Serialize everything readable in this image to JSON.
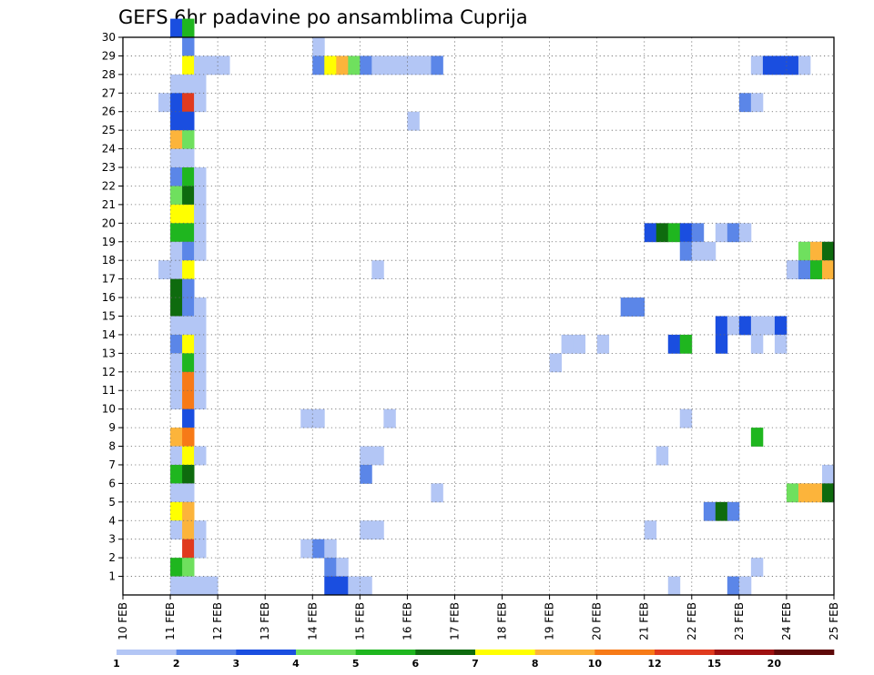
{
  "chart_data": {
    "type": "heatmap",
    "title": "GEFS 6hr padavine po ansamblima Cuprija",
    "xlabel": "",
    "ylabel": "",
    "x_ticks": [
      "10 FEB",
      "11 FEB",
      "12 FEB",
      "13 FEB",
      "14 FEB",
      "15 FEB",
      "16 FEB",
      "17 FEB",
      "18 FEB",
      "19 FEB",
      "20 FEB",
      "21 FEB",
      "22 FEB",
      "23 FEB",
      "24 FEB",
      "25 FEB"
    ],
    "y_ticks": [
      "1",
      "2",
      "3",
      "4",
      "5",
      "6",
      "7",
      "8",
      "9",
      "10",
      "11",
      "12",
      "13",
      "14",
      "15",
      "16",
      "17",
      "18",
      "19",
      "20",
      "21",
      "22",
      "23",
      "24",
      "25",
      "26",
      "27",
      "28",
      "29",
      "30"
    ],
    "x_range_days": [
      0,
      15
    ],
    "y_range_members": [
      0,
      30
    ],
    "grid": true,
    "steps_per_day": 4,
    "colorbar": {
      "labels": [
        "1",
        "2",
        "3",
        "4",
        "5",
        "6",
        "7",
        "8",
        "10",
        "12",
        "15",
        "20"
      ],
      "colors": [
        "#b3c6f5",
        "#5b86e8",
        "#1a4ee0",
        "#6fe05e",
        "#1fb61f",
        "#0e6b0e",
        "#ffff00",
        "#fcb43b",
        "#f77a17",
        "#e03a1e",
        "#9e1010",
        "#5e0808"
      ]
    },
    "cells": [
      {
        "member": 30,
        "step": 4,
        "bin": 2
      },
      {
        "member": 30,
        "step": 5,
        "bin": 4
      },
      {
        "member": 29,
        "step": 5,
        "bin": 1
      },
      {
        "member": 29,
        "step": 16,
        "bin": 0
      },
      {
        "member": 28,
        "step": 5,
        "bin": 6
      },
      {
        "member": 28,
        "step": 6,
        "bin": 0
      },
      {
        "member": 28,
        "step": 7,
        "bin": 0
      },
      {
        "member": 28,
        "step": 8,
        "bin": 0
      },
      {
        "member": 28,
        "step": 16,
        "bin": 1
      },
      {
        "member": 28,
        "step": 17,
        "bin": 6
      },
      {
        "member": 28,
        "step": 18,
        "bin": 7
      },
      {
        "member": 28,
        "step": 19,
        "bin": 3
      },
      {
        "member": 28,
        "step": 20,
        "bin": 1
      },
      {
        "member": 28,
        "step": 21,
        "bin": 0
      },
      {
        "member": 28,
        "step": 22,
        "bin": 0
      },
      {
        "member": 28,
        "step": 23,
        "bin": 0
      },
      {
        "member": 28,
        "step": 24,
        "bin": 0
      },
      {
        "member": 28,
        "step": 25,
        "bin": 0
      },
      {
        "member": 28,
        "step": 26,
        "bin": 1
      },
      {
        "member": 28,
        "step": 53,
        "bin": 0
      },
      {
        "member": 28,
        "step": 54,
        "bin": 2
      },
      {
        "member": 28,
        "step": 55,
        "bin": 2
      },
      {
        "member": 28,
        "step": 56,
        "bin": 2
      },
      {
        "member": 28,
        "step": 57,
        "bin": 0
      },
      {
        "member": 27,
        "step": 4,
        "bin": 0
      },
      {
        "member": 27,
        "step": 5,
        "bin": 0
      },
      {
        "member": 27,
        "step": 6,
        "bin": 0
      },
      {
        "member": 26,
        "step": 3,
        "bin": 0
      },
      {
        "member": 26,
        "step": 4,
        "bin": 2
      },
      {
        "member": 26,
        "step": 5,
        "bin": 9
      },
      {
        "member": 26,
        "step": 6,
        "bin": 0
      },
      {
        "member": 26,
        "step": 52,
        "bin": 1
      },
      {
        "member": 26,
        "step": 53,
        "bin": 0
      },
      {
        "member": 25,
        "step": 4,
        "bin": 2
      },
      {
        "member": 25,
        "step": 5,
        "bin": 2
      },
      {
        "member": 25,
        "step": 24,
        "bin": 0
      },
      {
        "member": 24,
        "step": 4,
        "bin": 7
      },
      {
        "member": 24,
        "step": 5,
        "bin": 3
      },
      {
        "member": 23,
        "step": 4,
        "bin": 0
      },
      {
        "member": 23,
        "step": 5,
        "bin": 0
      },
      {
        "member": 22,
        "step": 4,
        "bin": 1
      },
      {
        "member": 22,
        "step": 5,
        "bin": 4
      },
      {
        "member": 22,
        "step": 6,
        "bin": 0
      },
      {
        "member": 21,
        "step": 4,
        "bin": 3
      },
      {
        "member": 21,
        "step": 5,
        "bin": 5
      },
      {
        "member": 21,
        "step": 6,
        "bin": 0
      },
      {
        "member": 20,
        "step": 4,
        "bin": 6
      },
      {
        "member": 20,
        "step": 5,
        "bin": 6
      },
      {
        "member": 20,
        "step": 6,
        "bin": 0
      },
      {
        "member": 19,
        "step": 4,
        "bin": 4
      },
      {
        "member": 19,
        "step": 5,
        "bin": 4
      },
      {
        "member": 19,
        "step": 6,
        "bin": 0
      },
      {
        "member": 19,
        "step": 44,
        "bin": 2
      },
      {
        "member": 19,
        "step": 45,
        "bin": 5
      },
      {
        "member": 19,
        "step": 46,
        "bin": 4
      },
      {
        "member": 19,
        "step": 47,
        "bin": 2
      },
      {
        "member": 19,
        "step": 48,
        "bin": 1
      },
      {
        "member": 19,
        "step": 50,
        "bin": 0
      },
      {
        "member": 19,
        "step": 51,
        "bin": 1
      },
      {
        "member": 19,
        "step": 52,
        "bin": 0
      },
      {
        "member": 18,
        "step": 4,
        "bin": 0
      },
      {
        "member": 18,
        "step": 5,
        "bin": 1
      },
      {
        "member": 18,
        "step": 6,
        "bin": 0
      },
      {
        "member": 18,
        "step": 47,
        "bin": 1
      },
      {
        "member": 18,
        "step": 48,
        "bin": 0
      },
      {
        "member": 18,
        "step": 49,
        "bin": 0
      },
      {
        "member": 18,
        "step": 57,
        "bin": 3
      },
      {
        "member": 18,
        "step": 58,
        "bin": 7
      },
      {
        "member": 18,
        "step": 59,
        "bin": 5
      },
      {
        "member": 17,
        "step": 3,
        "bin": 0
      },
      {
        "member": 17,
        "step": 4,
        "bin": 0
      },
      {
        "member": 17,
        "step": 5,
        "bin": 6
      },
      {
        "member": 17,
        "step": 21,
        "bin": 0
      },
      {
        "member": 17,
        "step": 56,
        "bin": 0
      },
      {
        "member": 17,
        "step": 57,
        "bin": 1
      },
      {
        "member": 17,
        "step": 58,
        "bin": 4
      },
      {
        "member": 17,
        "step": 59,
        "bin": 7
      },
      {
        "member": 16,
        "step": 4,
        "bin": 5
      },
      {
        "member": 16,
        "step": 5,
        "bin": 1
      },
      {
        "member": 15,
        "step": 4,
        "bin": 5
      },
      {
        "member": 15,
        "step": 5,
        "bin": 1
      },
      {
        "member": 15,
        "step": 6,
        "bin": 0
      },
      {
        "member": 15,
        "step": 42,
        "bin": 1
      },
      {
        "member": 15,
        "step": 43,
        "bin": 1
      },
      {
        "member": 14,
        "step": 4,
        "bin": 0
      },
      {
        "member": 14,
        "step": 5,
        "bin": 0
      },
      {
        "member": 14,
        "step": 6,
        "bin": 0
      },
      {
        "member": 14,
        "step": 50,
        "bin": 2
      },
      {
        "member": 14,
        "step": 51,
        "bin": 0
      },
      {
        "member": 14,
        "step": 52,
        "bin": 2
      },
      {
        "member": 14,
        "step": 53,
        "bin": 0
      },
      {
        "member": 14,
        "step": 54,
        "bin": 0
      },
      {
        "member": 14,
        "step": 55,
        "bin": 2
      },
      {
        "member": 13,
        "step": 4,
        "bin": 1
      },
      {
        "member": 13,
        "step": 5,
        "bin": 6
      },
      {
        "member": 13,
        "step": 6,
        "bin": 0
      },
      {
        "member": 13,
        "step": 37,
        "bin": 0
      },
      {
        "member": 13,
        "step": 38,
        "bin": 0
      },
      {
        "member": 13,
        "step": 40,
        "bin": 0
      },
      {
        "member": 13,
        "step": 46,
        "bin": 2
      },
      {
        "member": 13,
        "step": 47,
        "bin": 4
      },
      {
        "member": 13,
        "step": 50,
        "bin": 2
      },
      {
        "member": 13,
        "step": 53,
        "bin": 0
      },
      {
        "member": 13,
        "step": 55,
        "bin": 0
      },
      {
        "member": 12,
        "step": 4,
        "bin": 0
      },
      {
        "member": 12,
        "step": 5,
        "bin": 4
      },
      {
        "member": 12,
        "step": 6,
        "bin": 0
      },
      {
        "member": 12,
        "step": 36,
        "bin": 0
      },
      {
        "member": 11,
        "step": 4,
        "bin": 0
      },
      {
        "member": 11,
        "step": 5,
        "bin": 8
      },
      {
        "member": 11,
        "step": 6,
        "bin": 0
      },
      {
        "member": 10,
        "step": 4,
        "bin": 0
      },
      {
        "member": 10,
        "step": 5,
        "bin": 8
      },
      {
        "member": 10,
        "step": 6,
        "bin": 0
      },
      {
        "member": 9,
        "step": 5,
        "bin": 2
      },
      {
        "member": 9,
        "step": 15,
        "bin": 0
      },
      {
        "member": 9,
        "step": 16,
        "bin": 0
      },
      {
        "member": 9,
        "step": 22,
        "bin": 0
      },
      {
        "member": 9,
        "step": 47,
        "bin": 0
      },
      {
        "member": 8,
        "step": 4,
        "bin": 7
      },
      {
        "member": 8,
        "step": 5,
        "bin": 8
      },
      {
        "member": 8,
        "step": 53,
        "bin": 4
      },
      {
        "member": 7,
        "step": 4,
        "bin": 0
      },
      {
        "member": 7,
        "step": 5,
        "bin": 6
      },
      {
        "member": 7,
        "step": 6,
        "bin": 0
      },
      {
        "member": 7,
        "step": 20,
        "bin": 0
      },
      {
        "member": 7,
        "step": 21,
        "bin": 0
      },
      {
        "member": 7,
        "step": 45,
        "bin": 0
      },
      {
        "member": 6,
        "step": 4,
        "bin": 4
      },
      {
        "member": 6,
        "step": 5,
        "bin": 5
      },
      {
        "member": 6,
        "step": 20,
        "bin": 1
      },
      {
        "member": 6,
        "step": 59,
        "bin": 0
      },
      {
        "member": 5,
        "step": 4,
        "bin": 0
      },
      {
        "member": 5,
        "step": 5,
        "bin": 0
      },
      {
        "member": 5,
        "step": 26,
        "bin": 0
      },
      {
        "member": 5,
        "step": 56,
        "bin": 3
      },
      {
        "member": 5,
        "step": 57,
        "bin": 7
      },
      {
        "member": 5,
        "step": 58,
        "bin": 7
      },
      {
        "member": 5,
        "step": 59,
        "bin": 5
      },
      {
        "member": 4,
        "step": 4,
        "bin": 6
      },
      {
        "member": 4,
        "step": 5,
        "bin": 7
      },
      {
        "member": 4,
        "step": 49,
        "bin": 1
      },
      {
        "member": 4,
        "step": 50,
        "bin": 5
      },
      {
        "member": 4,
        "step": 51,
        "bin": 1
      },
      {
        "member": 3,
        "step": 4,
        "bin": 0
      },
      {
        "member": 3,
        "step": 5,
        "bin": 7
      },
      {
        "member": 3,
        "step": 6,
        "bin": 0
      },
      {
        "member": 3,
        "step": 20,
        "bin": 0
      },
      {
        "member": 3,
        "step": 21,
        "bin": 0
      },
      {
        "member": 3,
        "step": 44,
        "bin": 0
      },
      {
        "member": 2,
        "step": 5,
        "bin": 9
      },
      {
        "member": 2,
        "step": 6,
        "bin": 0
      },
      {
        "member": 2,
        "step": 15,
        "bin": 0
      },
      {
        "member": 2,
        "step": 16,
        "bin": 1
      },
      {
        "member": 2,
        "step": 17,
        "bin": 0
      },
      {
        "member": 1,
        "step": 4,
        "bin": 4
      },
      {
        "member": 1,
        "step": 5,
        "bin": 3
      },
      {
        "member": 1,
        "step": 17,
        "bin": 1
      },
      {
        "member": 1,
        "step": 18,
        "bin": 0
      },
      {
        "member": 1,
        "step": 53,
        "bin": 0
      },
      {
        "member": 0,
        "step": 4,
        "bin": 0
      },
      {
        "member": 0,
        "step": 5,
        "bin": 0
      },
      {
        "member": 0,
        "step": 6,
        "bin": 0
      },
      {
        "member": 0,
        "step": 7,
        "bin": 0
      },
      {
        "member": 0,
        "step": 17,
        "bin": 2
      },
      {
        "member": 0,
        "step": 18,
        "bin": 2
      },
      {
        "member": 0,
        "step": 19,
        "bin": 0
      },
      {
        "member": 0,
        "step": 20,
        "bin": 0
      },
      {
        "member": 0,
        "step": 46,
        "bin": 0
      },
      {
        "member": 0,
        "step": 51,
        "bin": 1
      },
      {
        "member": 0,
        "step": 52,
        "bin": 0
      }
    ]
  }
}
